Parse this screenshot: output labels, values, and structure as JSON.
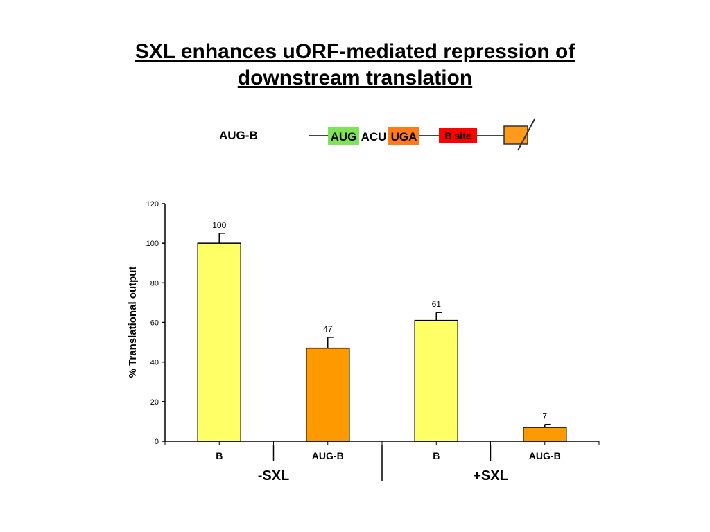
{
  "title": {
    "line1": "SXL enhances uORF-mediated repression of",
    "line2": "downstream translation"
  },
  "construct": {
    "name": "AUG-B",
    "aug_label": "AUG",
    "spacer_label": "ACU",
    "uga_label": "UGA",
    "site_label": "B site",
    "colors": {
      "aug": "#7fe35a",
      "uga": "#ff7a1a",
      "site": "#ff0000",
      "orf": "#ff9a1a"
    }
  },
  "chart_data": {
    "type": "bar",
    "ylabel": "% Translational output",
    "xlabel": "",
    "title": "",
    "ylim": [
      0,
      120
    ],
    "yticks": [
      0,
      20,
      40,
      60,
      80,
      100,
      120
    ],
    "categories": [
      "B",
      "AUG-B",
      "B",
      "AUG-B"
    ],
    "groups": [
      "-SXL",
      "+SXL"
    ],
    "values": [
      100,
      47,
      61,
      7
    ],
    "errors": [
      5,
      5.5,
      4,
      1.5
    ],
    "data_labels": [
      "100",
      "47",
      "61",
      "7"
    ],
    "colors": [
      "#ffff66",
      "#ff9900",
      "#ffff66",
      "#ff9900"
    ],
    "grid": false,
    "legend": "none"
  }
}
